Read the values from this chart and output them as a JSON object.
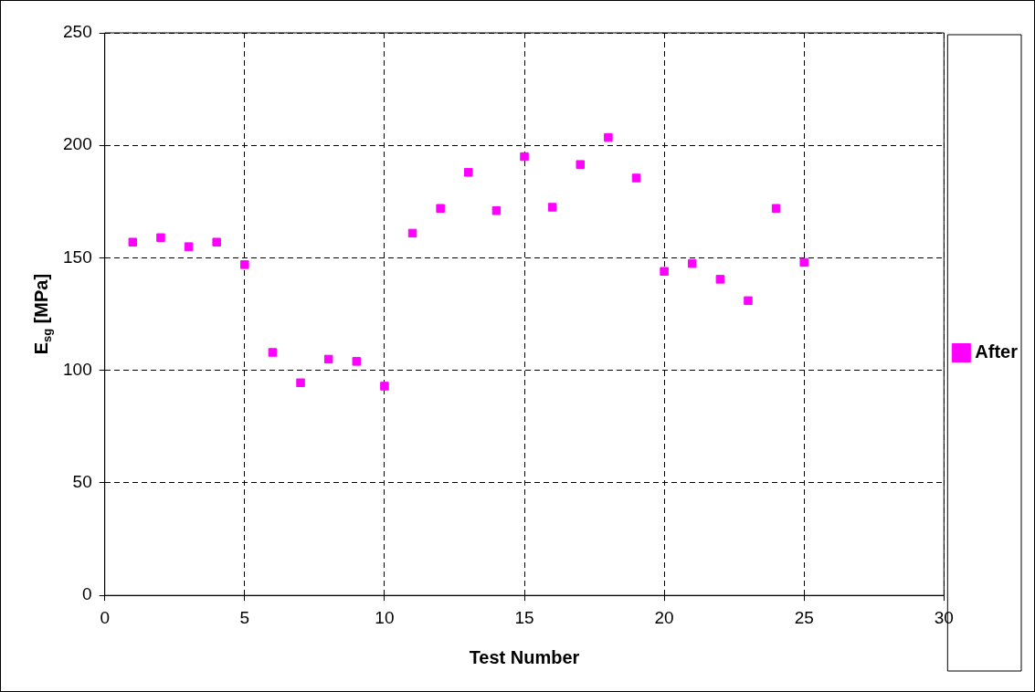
{
  "chart_data": {
    "type": "scatter",
    "xlabel": "Test Number",
    "ylabel": "E$_{sg}$ [MPa]",
    "x": [
      1,
      2,
      3,
      4,
      5,
      6,
      7,
      8,
      9,
      10,
      11,
      12,
      13,
      14,
      15,
      16,
      17,
      18,
      19,
      20,
      21,
      22,
      23,
      24,
      25
    ],
    "series": [
      {
        "name": "After",
        "color": "#ff00ff",
        "values": [
          157,
          159,
          155,
          157,
          147,
          108,
          94.5,
          105,
          104,
          93,
          161,
          172,
          188,
          171,
          195,
          172.5,
          191.5,
          203.5,
          185.5,
          144,
          147.5,
          140.5,
          131,
          172,
          148
        ]
      }
    ],
    "xlim": [
      0,
      30
    ],
    "xticks": [
      0,
      5,
      10,
      15,
      20,
      25,
      30
    ],
    "ylim": [
      0,
      250
    ],
    "yticks": [
      0,
      50,
      100,
      150,
      200,
      250
    ],
    "grid": true,
    "legend": "right",
    "marker": "square"
  }
}
